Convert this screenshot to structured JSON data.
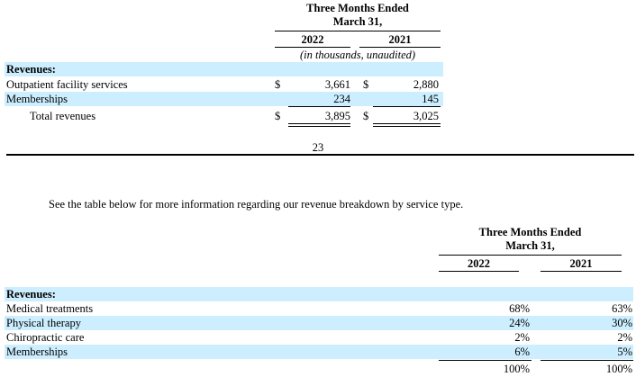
{
  "table1": {
    "header_line1": "Three Months Ended",
    "header_line2": "March 31,",
    "col1_year": "2022",
    "col2_year": "2021",
    "unit_note": "(in thousands, unaudited)",
    "section_label": "Revenues:",
    "rows": [
      {
        "label": "Outpatient facility services",
        "cur1": "$",
        "val1": "3,661",
        "cur2": "$",
        "val2": "2,880"
      },
      {
        "label": "Memberships",
        "cur1": "",
        "val1": "234",
        "cur2": "",
        "val2": "145"
      },
      {
        "label": "Total revenues",
        "cur1": "$",
        "val1": "3,895",
        "cur2": "$",
        "val2": "3,025"
      }
    ]
  },
  "page_number": "23",
  "intro_text": "See the table below for more information regarding our revenue breakdown by service type.",
  "table2": {
    "header_line1": "Three Months Ended",
    "header_line2": "March 31,",
    "col1_year": "2022",
    "col2_year": "2021",
    "section_label": "Revenues:",
    "rows": [
      {
        "label": "Medical treatments",
        "val1": "68%",
        "val2": "63%"
      },
      {
        "label": "Physical therapy",
        "val1": "24%",
        "val2": "30%"
      },
      {
        "label": "Chiropractic care",
        "val1": "2%",
        "val2": "2%"
      },
      {
        "label": "Memberships",
        "val1": "6%",
        "val2": "5%"
      }
    ],
    "total_val1": "100%",
    "total_val2": "100%"
  }
}
